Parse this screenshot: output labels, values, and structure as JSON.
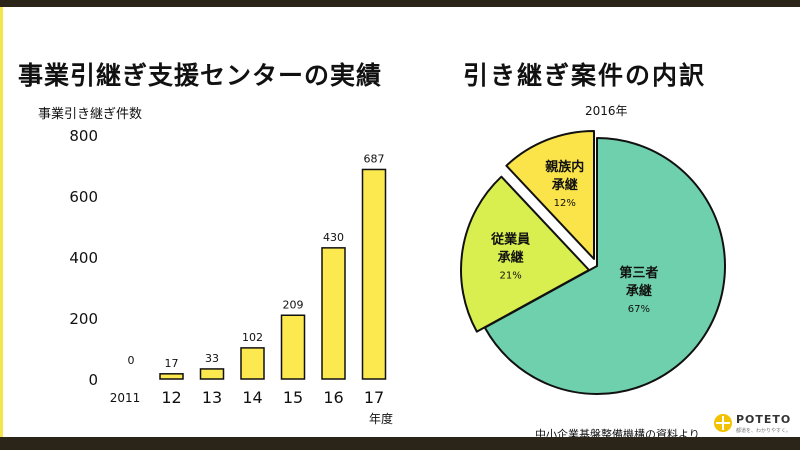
{
  "left": {
    "title": "事業引継ぎ支援センターの実績",
    "y_axis_label": "事業引き継ぎ件数",
    "x_axis_unit": "年度"
  },
  "right": {
    "title": "引き継ぎ案件の内訳",
    "year_label": "2016年"
  },
  "source": "中小企業基盤整備機構の資料より",
  "logo": {
    "name": "POTETO",
    "tagline": "都道を、わかりやすく。",
    "icon": "poteto-logo-icon"
  },
  "colors": {
    "bar_fill": "#fce94f",
    "bar_stroke": "#111111",
    "pie_third_party": "#6fd0ad",
    "pie_employee": "#d9ef4f",
    "pie_family": "#fbe44a",
    "frame": "#2b2418"
  },
  "chart_data": [
    {
      "type": "bar",
      "categories": [
        "2011",
        "12",
        "13",
        "14",
        "15",
        "16",
        "17"
      ],
      "values": [
        0,
        17,
        33,
        102,
        209,
        430,
        687
      ],
      "data_labels": [
        "0",
        "17",
        "33",
        "102",
        "209",
        "430",
        "687"
      ],
      "title": "事業引継ぎ支援センターの実績",
      "xlabel": "年度",
      "ylabel": "事業引き継ぎ件数",
      "ylim": [
        0,
        800
      ],
      "yticks": [
        0,
        200,
        400,
        600,
        800
      ],
      "grid": false,
      "legend": "none"
    },
    {
      "type": "pie",
      "title": "引き継ぎ案件の内訳",
      "subtitle": "2016年",
      "slices": [
        {
          "label": "第三者承継",
          "lines": [
            "第三者",
            "承継"
          ],
          "value": 67,
          "pct_label": "67%",
          "color": "#6fd0ad"
        },
        {
          "label": "従業員承継",
          "lines": [
            "従業員",
            "承継"
          ],
          "value": 21,
          "pct_label": "21%",
          "color": "#d9ef4f"
        },
        {
          "label": "親族内承継",
          "lines": [
            "親族内",
            "承継"
          ],
          "value": 12,
          "pct_label": "12%",
          "color": "#fbe44a"
        }
      ],
      "legend": "none"
    }
  ]
}
